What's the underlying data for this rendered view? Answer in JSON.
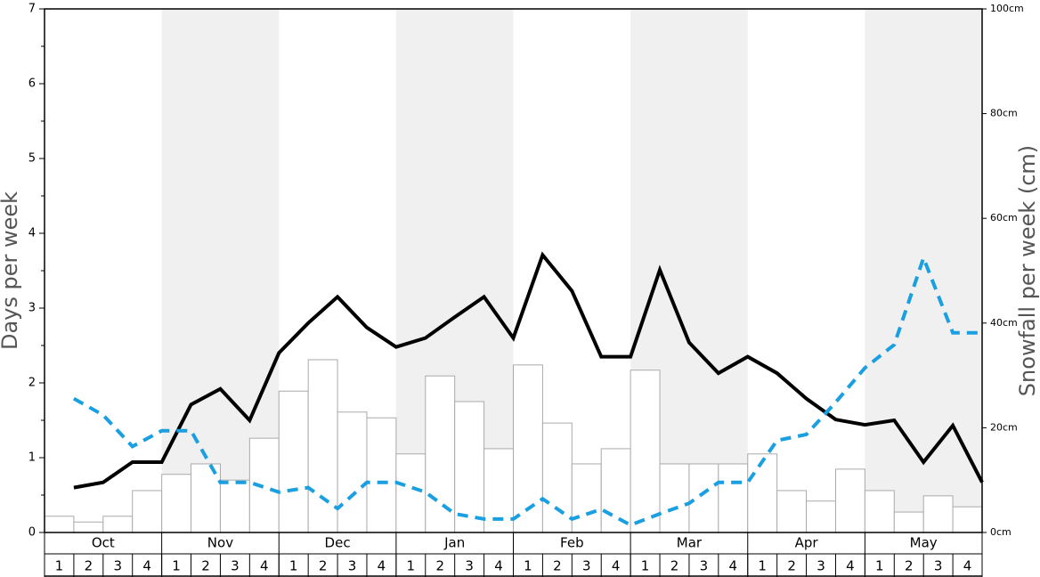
{
  "chart_data": {
    "type": "bar-line",
    "ylabel": "Days per week",
    "y2label": "Snowfall per week (cm)",
    "months": [
      "Oct",
      "Nov",
      "Dec",
      "Jan",
      "Feb",
      "Mar",
      "Apr",
      "May"
    ],
    "categories": [
      "1",
      "2",
      "3",
      "4",
      "1",
      "2",
      "3",
      "4",
      "1",
      "2",
      "3",
      "4",
      "1",
      "2",
      "3",
      "4",
      "1",
      "2",
      "3",
      "4",
      "1",
      "2",
      "3",
      "4",
      "1",
      "2",
      "3",
      "4",
      "1",
      "2",
      "3",
      "4"
    ],
    "ylim": [
      0,
      7
    ],
    "yticks": [
      0,
      1,
      2,
      3,
      4,
      5,
      6,
      7
    ],
    "y2lim": [
      0,
      100
    ],
    "y2ticks": [
      {
        "value": 0,
        "label": "0cm"
      },
      {
        "value": 20,
        "label": "20cm"
      },
      {
        "value": 40,
        "label": "40cm"
      },
      {
        "value": 60,
        "label": "60cm"
      },
      {
        "value": 80,
        "label": "80cm"
      },
      {
        "value": 100,
        "label": "100cm"
      }
    ],
    "shade_color": "#f0f0f0",
    "series": [
      {
        "type": "bar",
        "axis": "y2",
        "color": "#ffffff",
        "stroke": "#aaaaaa",
        "values": [
          3.1,
          2.0,
          3.1,
          8.0,
          11.1,
          13.1,
          10.0,
          18.0,
          27.0,
          33.0,
          23.0,
          21.9,
          15.0,
          29.9,
          25.0,
          16.0,
          32.0,
          20.9,
          13.1,
          16.0,
          31.0,
          13.1,
          13.1,
          13.1,
          15.0,
          8.0,
          6.0,
          12.1,
          8.0,
          3.9,
          7.0,
          4.9
        ]
      },
      {
        "type": "line",
        "color": "#000000",
        "dashed": false,
        "values": [
          0.6,
          0.67,
          0.94,
          0.94,
          1.71,
          1.92,
          1.5,
          2.4,
          2.8,
          3.15,
          2.74,
          2.48,
          2.6,
          2.88,
          3.15,
          2.6,
          3.71,
          3.23,
          2.35,
          2.35,
          3.51,
          2.54,
          2.13,
          2.35,
          2.13,
          1.79,
          1.51,
          1.44,
          1.5,
          0.94,
          1.43,
          0.67
        ]
      },
      {
        "type": "line",
        "color": "#1a9fe0",
        "dashed": true,
        "values": [
          1.79,
          1.57,
          1.15,
          1.36,
          1.36,
          0.67,
          0.67,
          0.54,
          0.6,
          0.32,
          0.67,
          0.67,
          0.54,
          0.25,
          0.18,
          0.18,
          0.45,
          0.18,
          0.31,
          0.1,
          0.25,
          0.39,
          0.67,
          0.67,
          1.23,
          1.31,
          1.74,
          2.2,
          2.51,
          3.67,
          2.67,
          2.67
        ]
      }
    ]
  }
}
